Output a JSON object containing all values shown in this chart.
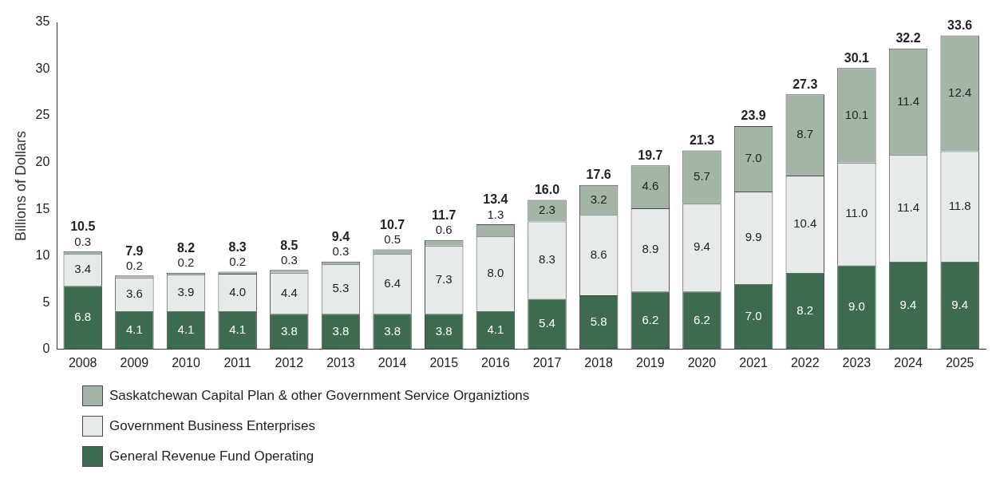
{
  "chart_data": {
    "type": "bar",
    "ylabel": "Billions of Dollars",
    "categories": [
      "2008",
      "2009",
      "2010",
      "2011",
      "2012",
      "2013",
      "2014",
      "2015",
      "2016",
      "2017",
      "2018",
      "2019",
      "2020",
      "2021",
      "2022",
      "2023",
      "2024",
      "2025"
    ],
    "stacked": true,
    "ylim": [
      0,
      35
    ],
    "yticks": [
      0,
      5,
      10,
      15,
      20,
      25,
      30,
      35
    ],
    "grid": false,
    "legend": "bottom",
    "series": [
      {
        "name": "General Revenue Fund Operating",
        "color": "#3d6b4f",
        "values": [
          6.8,
          4.1,
          4.1,
          4.1,
          3.8,
          3.8,
          3.8,
          3.8,
          4.1,
          5.4,
          5.8,
          6.2,
          6.2,
          7.0,
          8.2,
          9.0,
          9.4,
          9.4
        ],
        "value_labels": [
          "6.8",
          "4.1",
          "4.1",
          "4.1",
          "3.8",
          "3.8",
          "3.8",
          "3.8",
          "4.1",
          "5.4",
          "5.8",
          "6.2",
          "6.2",
          "7.0",
          "8.2",
          "9.0",
          "9.4",
          "9.4"
        ]
      },
      {
        "name": "Government Business Enterprises",
        "color": "#e6ebe7",
        "values": [
          3.4,
          3.6,
          3.9,
          4.0,
          4.4,
          5.3,
          6.4,
          7.3,
          8.0,
          8.3,
          8.6,
          8.9,
          9.4,
          9.9,
          10.4,
          11.0,
          11.4,
          11.8
        ],
        "value_labels": [
          "3.4",
          "3.6",
          "3.9",
          "4.0",
          "4.4",
          "5.3",
          "6.4",
          "7.3",
          "8.0",
          "8.3",
          "8.6",
          "8.9",
          "9.4",
          "9.9",
          "10.4",
          "11.0",
          "11.4",
          "11.8"
        ]
      },
      {
        "name": "Saskatchewan Capital Plan & other Government Service Organiztions",
        "color": "#a3b5a6",
        "values": [
          0.3,
          0.2,
          0.2,
          0.2,
          0.3,
          0.3,
          0.5,
          0.6,
          1.3,
          2.3,
          3.2,
          4.6,
          5.7,
          7.0,
          8.7,
          10.1,
          11.4,
          12.4
        ],
        "value_labels": [
          "0.3",
          "0.2",
          "0.2",
          "0.2",
          "0.3",
          "0.3",
          "0.5",
          "0.6",
          "1.3",
          "2.3",
          "3.2",
          "4.6",
          "5.7",
          "7.0",
          "8.7",
          "10.1",
          "11.4",
          "12.4"
        ]
      }
    ],
    "totals": [
      "10.5",
      "7.9",
      "8.2",
      "8.3",
      "8.5",
      "9.4",
      "10.7",
      "11.7",
      "13.4",
      "16.0",
      "17.6",
      "19.7",
      "21.3",
      "23.9",
      "27.3",
      "30.1",
      "32.2",
      "33.6"
    ]
  }
}
